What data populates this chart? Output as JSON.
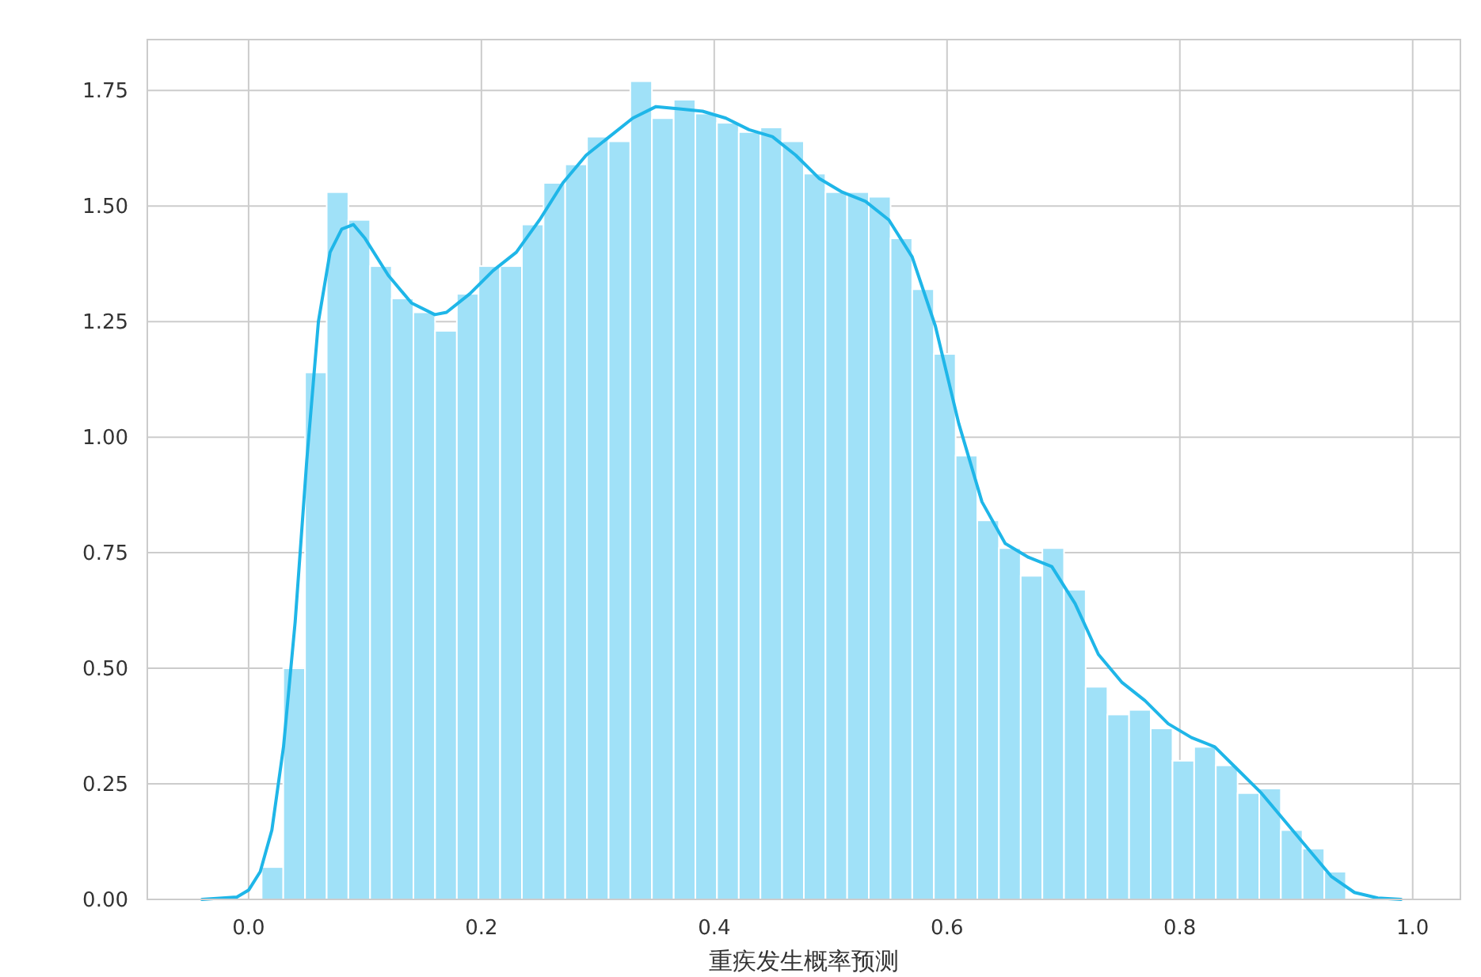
{
  "chart_data": {
    "type": "histogram",
    "xlabel": "重疾发生概率预测",
    "xlim": [
      -0.087,
      1.041
    ],
    "ylim": [
      0,
      1.86
    ],
    "xticks": [
      {
        "value": 0,
        "label": "0.0"
      },
      0.2,
      0.4,
      0.6,
      0.8,
      {
        "value": 1,
        "label": "1.0"
      }
    ],
    "yticks": [
      {
        "value": 0,
        "label": "0.00"
      },
      0.25,
      {
        "value": 0.5,
        "label": "0.50"
      },
      0.75,
      {
        "value": 1,
        "label": "1.00"
      },
      1.25,
      {
        "value": 1.5,
        "label": "1.50"
      },
      1.75
    ],
    "grid": true,
    "series": [
      {
        "color": "#a0e1f8",
        "bins": [
          0.0112,
          0.0298,
          0.0485,
          0.0671,
          0.0857,
          0.1044,
          0.123,
          0.1416,
          0.1602,
          0.1789,
          0.1975,
          0.2161,
          0.2348,
          0.2534,
          0.272,
          0.2907,
          0.3093,
          0.3279,
          0.3465,
          0.3652,
          0.3838,
          0.4024,
          0.4211,
          0.4397,
          0.4583,
          0.477,
          0.4956,
          0.5142,
          0.5328,
          0.5515,
          0.5701,
          0.5887,
          0.6074,
          0.626,
          0.6446,
          0.6633,
          0.6819,
          0.7005,
          0.7191,
          0.7378,
          0.7564,
          0.775,
          0.7937,
          0.8123,
          0.8309,
          0.8496,
          0.8682,
          0.8868,
          0.9054,
          0.9241,
          0.9427
        ],
        "values": [
          0.07,
          0.5,
          1.14,
          1.53,
          1.47,
          1.37,
          1.3,
          1.27,
          1.23,
          1.31,
          1.37,
          1.37,
          1.46,
          1.55,
          1.59,
          1.65,
          1.64,
          1.77,
          1.69,
          1.73,
          1.7,
          1.68,
          1.66,
          1.67,
          1.64,
          1.57,
          1.53,
          1.53,
          1.52,
          1.43,
          1.32,
          1.18,
          0.96,
          0.82,
          0.76,
          0.7,
          0.76,
          0.67,
          0.46,
          0.4,
          0.41,
          0.37,
          0.3,
          0.33,
          0.29,
          0.23,
          0.24,
          0.15,
          0.11,
          0.06
        ]
      },
      {
        "type": "line",
        "color": "#1fb6e8",
        "x": [
          -0.04,
          -0.01,
          0.0,
          0.01,
          0.02,
          0.03,
          0.04,
          0.05,
          0.06,
          0.07,
          0.08,
          0.09,
          0.1,
          0.12,
          0.14,
          0.16,
          0.17,
          0.19,
          0.21,
          0.23,
          0.25,
          0.27,
          0.29,
          0.31,
          0.33,
          0.35,
          0.37,
          0.39,
          0.41,
          0.43,
          0.45,
          0.47,
          0.49,
          0.51,
          0.53,
          0.55,
          0.57,
          0.59,
          0.61,
          0.63,
          0.65,
          0.67,
          0.69,
          0.71,
          0.73,
          0.75,
          0.77,
          0.79,
          0.81,
          0.83,
          0.85,
          0.87,
          0.89,
          0.91,
          0.93,
          0.95,
          0.97,
          0.99
        ],
        "values": [
          0,
          0.005,
          0.02,
          0.06,
          0.15,
          0.33,
          0.6,
          0.95,
          1.25,
          1.4,
          1.45,
          1.46,
          1.43,
          1.35,
          1.29,
          1.265,
          1.27,
          1.31,
          1.36,
          1.4,
          1.47,
          1.55,
          1.61,
          1.65,
          1.69,
          1.715,
          1.71,
          1.705,
          1.69,
          1.665,
          1.65,
          1.61,
          1.56,
          1.53,
          1.51,
          1.47,
          1.39,
          1.24,
          1.03,
          0.86,
          0.77,
          0.74,
          0.72,
          0.64,
          0.53,
          0.47,
          0.43,
          0.38,
          0.35,
          0.33,
          0.28,
          0.23,
          0.17,
          0.11,
          0.05,
          0.015,
          0.003,
          0
        ]
      }
    ]
  }
}
